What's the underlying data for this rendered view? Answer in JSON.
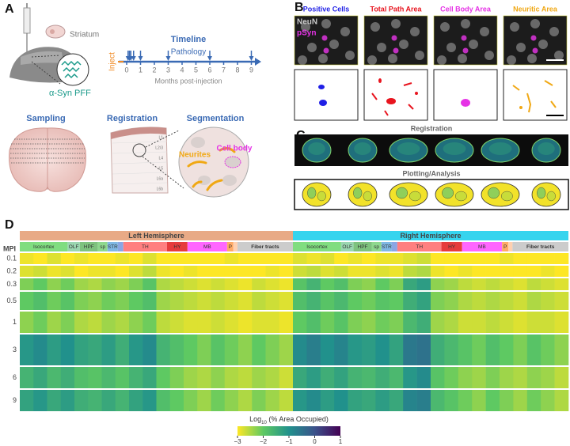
{
  "panel_labels": [
    "A",
    "B",
    "C",
    "D"
  ],
  "panel_a": {
    "striatum": "Striatum",
    "pff": "α-Syn PFF",
    "timeline": {
      "title": "Timeline",
      "subtitle": "Pathology",
      "inject": "Inject",
      "xlabel": "Months post-injection",
      "xlim": [
        0,
        9
      ],
      "xticks": [
        0,
        1,
        2,
        3,
        4,
        5,
        6,
        7,
        8,
        9
      ],
      "sample_times": [
        0.1,
        0.2,
        0.3,
        0.5,
        1,
        3,
        6,
        9
      ]
    },
    "sampling": "Sampling",
    "registration": "Registration",
    "segmentation": "Segmentation",
    "layers": [
      "L1",
      "L2/3",
      "L4",
      "L5",
      "L6a",
      "L6b"
    ],
    "neurites": "Neurites",
    "cell_body": "Cell body"
  },
  "panel_b": {
    "columns": [
      {
        "title": "Positive Cells",
        "color": "#1f1fe6"
      },
      {
        "title": "Total Path Area",
        "color": "#e8141e"
      },
      {
        "title": "Cell Body Area",
        "color": "#e632e6"
      },
      {
        "title": "Neuritic Area",
        "color": "#f0a814"
      }
    ],
    "stain_labels": [
      "NeuN",
      "pSyn"
    ]
  },
  "panel_c": {
    "registration": "Registration",
    "plotting": "Plotting/Analysis"
  },
  "heatmap": {
    "hemispheres": [
      "Left Hemisphere",
      "Right Hemisphere"
    ],
    "hemisphere_colors": [
      "#e8aa86",
      "#36d4ee"
    ],
    "regions": [
      "Isocortex",
      "OLF",
      "HPF",
      "sp",
      "STR",
      "TH",
      "HY",
      "MB",
      "P",
      "Fiber tracts"
    ],
    "row_axis_label": "MPI",
    "rows": [
      {
        "mpi": 0.1,
        "values": [
          -2.9,
          -3,
          -2.8,
          -3,
          -2.9,
          -3,
          -3,
          -2.9,
          -3,
          -2.8,
          -3,
          -3,
          -3,
          -3,
          -3,
          -2.9,
          -3,
          -3,
          -3,
          -3,
          -2.8,
          -2.9,
          -2.8,
          -3,
          -2.9,
          -3,
          -2.9,
          -2.9,
          -2.8,
          -2.7,
          -3,
          -3,
          -3,
          -3,
          -3,
          -2.9,
          -3,
          -3,
          -3,
          -3
        ]
      },
      {
        "mpi": 0.2,
        "values": [
          -2.8,
          -2.7,
          -2.9,
          -2.8,
          -3,
          -2.9,
          -2.9,
          -3,
          -2.8,
          -2.6,
          -2.9,
          -3,
          -2.9,
          -3,
          -3,
          -3,
          -3,
          -3,
          -2.9,
          -3,
          -2.7,
          -2.6,
          -2.8,
          -2.7,
          -2.9,
          -2.9,
          -2.8,
          -2.9,
          -2.6,
          -2.5,
          -2.9,
          -3,
          -2.9,
          -3,
          -3,
          -3,
          -3,
          -3,
          -2.9,
          -3
        ]
      },
      {
        "mpi": 0.3,
        "values": [
          -2.2,
          -2,
          -2.3,
          -2.1,
          -2.4,
          -2.5,
          -2.3,
          -2.4,
          -2.2,
          -1.9,
          -2.5,
          -2.6,
          -2.7,
          -2.8,
          -2.7,
          -2.8,
          -2.9,
          -2.7,
          -2.8,
          -2.9,
          -1.9,
          -1.6,
          -2,
          -1.8,
          -2.2,
          -2.3,
          -2,
          -2.2,
          -1.4,
          -1.2,
          -2.3,
          -2.4,
          -2.6,
          -2.7,
          -2.6,
          -2.7,
          -2.8,
          -2.6,
          -2.7,
          -2.8
        ]
      },
      {
        "mpi": 0.5,
        "values": [
          -2,
          -1.8,
          -2.1,
          -1.9,
          -2.2,
          -2.3,
          -2.1,
          -2.2,
          -2,
          -1.8,
          -2.4,
          -2.5,
          -2.6,
          -2.7,
          -2.6,
          -2.7,
          -2.8,
          -2.6,
          -2.7,
          -2.8,
          -1.8,
          -1.6,
          -1.9,
          -1.7,
          -2,
          -2.1,
          -1.9,
          -2,
          -1.5,
          -1.3,
          -2.2,
          -2.3,
          -2.5,
          -2.6,
          -2.5,
          -2.6,
          -2.7,
          -2.5,
          -2.6,
          -2.7
        ]
      },
      {
        "mpi": 1,
        "values": [
          -2.3,
          -2.1,
          -2.4,
          -2.2,
          -2.5,
          -2.6,
          -2.4,
          -2.5,
          -2.3,
          -2.1,
          -2.6,
          -2.7,
          -2.8,
          -2.8,
          -2.7,
          -2.8,
          -2.9,
          -2.8,
          -2.8,
          -2.9,
          -2,
          -1.8,
          -2.1,
          -1.9,
          -2.2,
          -2.3,
          -2.1,
          -2.2,
          -1.7,
          -1.5,
          -2.4,
          -2.5,
          -2.7,
          -2.7,
          -2.6,
          -2.7,
          -2.8,
          -2.7,
          -2.7,
          -2.8
        ]
      },
      {
        "mpi": 3,
        "values": [
          -1.1,
          -0.9,
          -1.2,
          -1,
          -1.3,
          -1.4,
          -1.2,
          -1.5,
          -1.1,
          -0.9,
          -1.6,
          -1.8,
          -2,
          -2.2,
          -1.9,
          -2.1,
          -2.3,
          -2,
          -2.2,
          -2.4,
          -0.9,
          -0.7,
          -1,
          -0.8,
          -1.1,
          -1.2,
          -1,
          -1.3,
          -0.6,
          -0.5,
          -1.5,
          -1.7,
          -1.9,
          -2.1,
          -1.8,
          -2,
          -2.2,
          -1.9,
          -2.1,
          -2.3
        ]
      },
      {
        "mpi": 6,
        "values": [
          -1.6,
          -1.4,
          -1.7,
          -1.5,
          -1.8,
          -1.9,
          -1.7,
          -1.9,
          -1.6,
          -1.4,
          -2,
          -2.2,
          -2.4,
          -2.5,
          -2.3,
          -2.5,
          -2.6,
          -2.4,
          -2.5,
          -2.7,
          -1.4,
          -1.2,
          -1.5,
          -1.3,
          -1.6,
          -1.7,
          -1.5,
          -1.7,
          -1.1,
          -0.9,
          -1.9,
          -2.1,
          -2.3,
          -2.4,
          -2.2,
          -2.4,
          -2.5,
          -2.3,
          -2.4,
          -2.6
        ]
      },
      {
        "mpi": 9,
        "values": [
          -1.3,
          -1.1,
          -1.4,
          -1.2,
          -1.5,
          -1.6,
          -1.4,
          -1.6,
          -1.3,
          -1.1,
          -1.8,
          -2,
          -2.2,
          -2.4,
          -2.1,
          -2.3,
          -2.5,
          -2.2,
          -2.4,
          -2.6,
          -1.1,
          -0.9,
          -1.2,
          -1,
          -1.3,
          -1.4,
          -1.2,
          -1.4,
          -0.8,
          -0.7,
          -1.7,
          -1.9,
          -2.1,
          -2.3,
          -2,
          -2.2,
          -2.4,
          -2.1,
          -2.3,
          -2.5
        ]
      }
    ],
    "colorbar": {
      "title_prefix": "Log",
      "title_sub": "10",
      "title_suffix": " (% Area Occupied)",
      "lim": [
        -3,
        1
      ],
      "ticks": [
        {
          "value": -3,
          "label": "−3"
        },
        {
          "value": -2,
          "label": "−2"
        },
        {
          "value": -1,
          "label": "−1"
        },
        0,
        1
      ]
    }
  }
}
